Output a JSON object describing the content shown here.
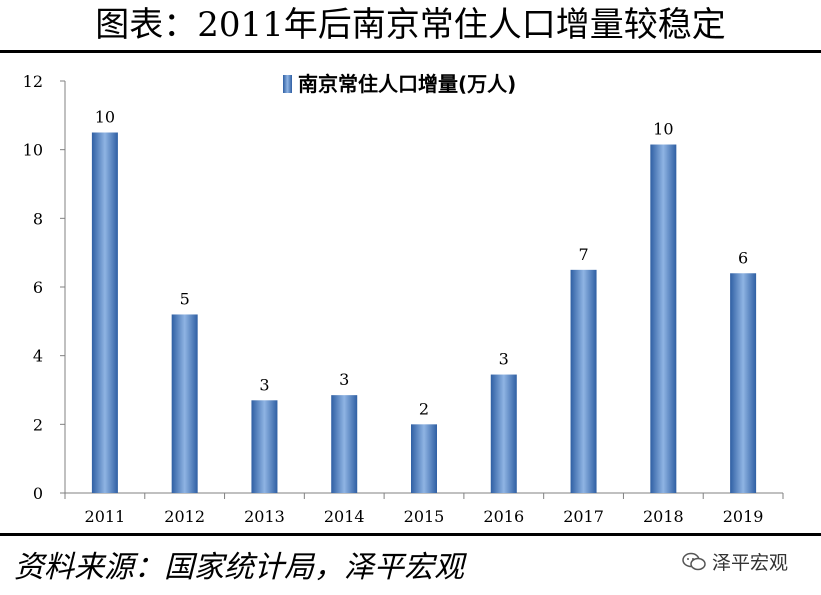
{
  "header": {
    "title": "图表：2011年后南京常住人口增量较稳定"
  },
  "footer": {
    "source": "资料来源：国家统计局，泽平宏观",
    "brand": "泽平宏观",
    "brand_icon": "wechat-icon"
  },
  "colors": {
    "bar_light": "#8fb4e3",
    "bar_dark": "#2f5fa3",
    "axis": "#808080"
  },
  "chart_data": {
    "type": "bar",
    "categories": [
      "2011",
      "2012",
      "2013",
      "2014",
      "2015",
      "2016",
      "2017",
      "2018",
      "2019"
    ],
    "series": [
      {
        "name": "南京常住人口增量(万人)",
        "values": [
          10.5,
          5.2,
          2.7,
          2.85,
          2.0,
          3.45,
          6.5,
          10.15,
          6.4
        ]
      }
    ],
    "data_labels": [
      "10",
      "5",
      "3",
      "3",
      "2",
      "3",
      "7",
      "10",
      "6"
    ],
    "ylim": [
      0,
      12
    ],
    "yticks": [
      0,
      2,
      4,
      6,
      8,
      10,
      12
    ],
    "grid": false,
    "legend": "top-center"
  }
}
